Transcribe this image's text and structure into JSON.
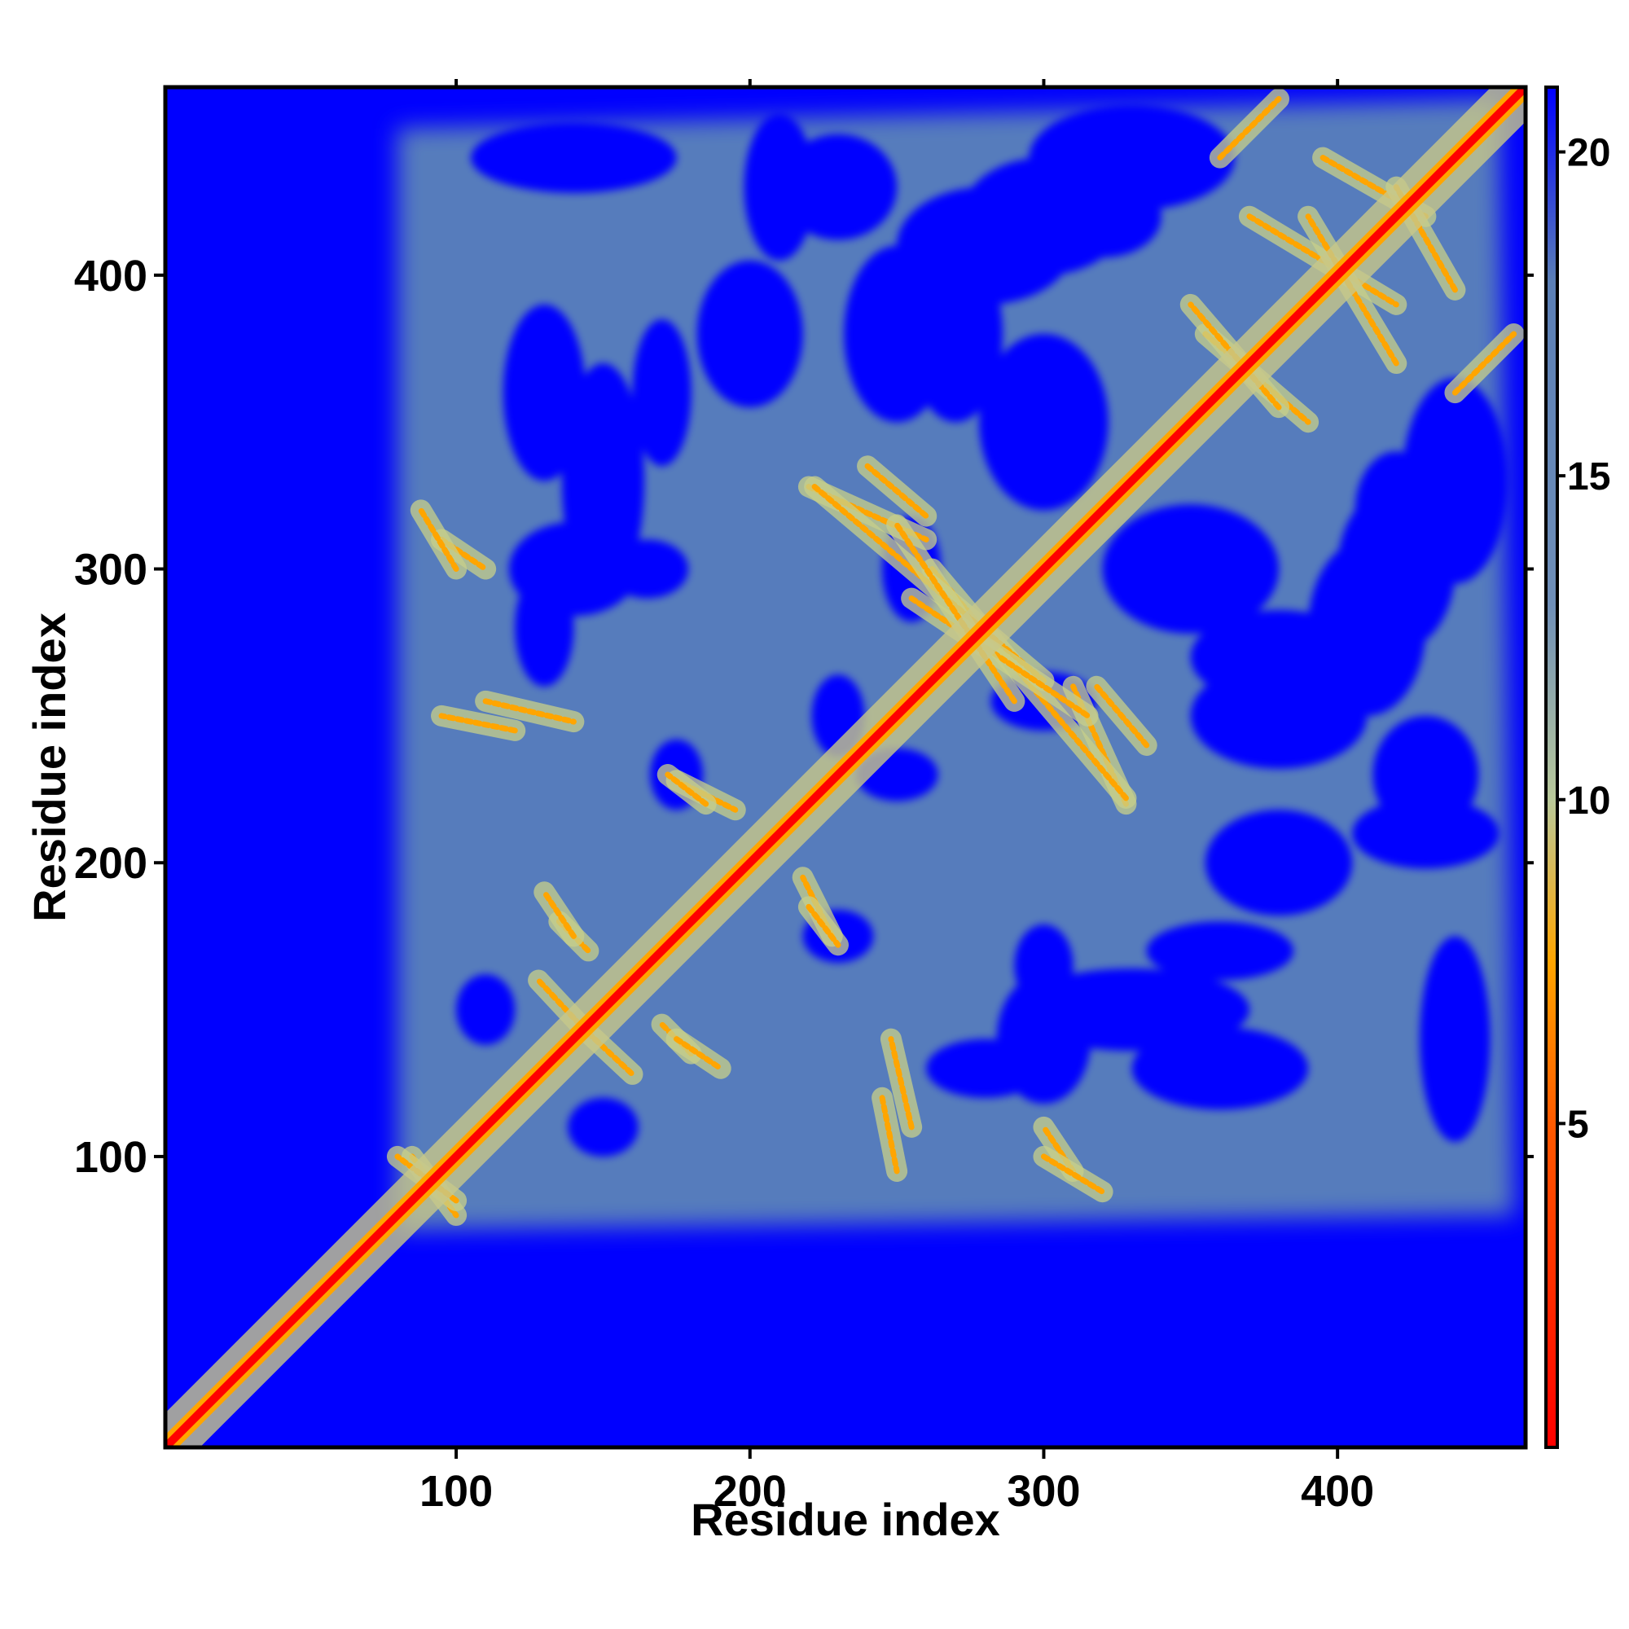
{
  "chart_data": {
    "type": "heatmap",
    "title": "",
    "xlabel": "Residue index",
    "ylabel": "Residue index",
    "xlim": [
      1,
      464
    ],
    "ylim": [
      1,
      464
    ],
    "x_ticks": [
      100,
      200,
      300,
      400
    ],
    "y_ticks": [
      100,
      200,
      300,
      400
    ],
    "colorbar": {
      "range": [
        0,
        21
      ],
      "ticks": [
        5,
        10,
        15,
        20
      ],
      "stops": [
        {
          "value": 0,
          "color": "#ff0000"
        },
        {
          "value": 5,
          "color": "#ff5a00"
        },
        {
          "value": 7.5,
          "color": "#ffa500"
        },
        {
          "value": 10,
          "color": "#b9c99a"
        },
        {
          "value": 13,
          "color": "#6f8fb8"
        },
        {
          "value": 18,
          "color": "#5b7fb6"
        },
        {
          "value": 21,
          "color": "#0000ff"
        }
      ]
    },
    "description_of_values": "pairwise residue distance map; diagonal near 0, background saturated at max",
    "colors": {
      "background": "#0000ff",
      "mid": "#5b83b8",
      "contact": "#ffa500",
      "diagonal": "#ff0000"
    }
  }
}
